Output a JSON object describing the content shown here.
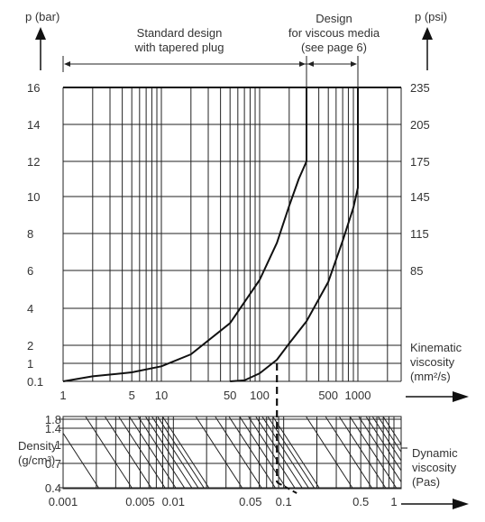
{
  "chart_data": {
    "type": "line",
    "upper_chart": {
      "left_axis": {
        "label": "p (bar)",
        "ticks": [
          "16",
          "14",
          "12",
          "10",
          "8",
          "6",
          "4",
          "2",
          "1",
          "0.1"
        ],
        "values": [
          16,
          14,
          12,
          10,
          8,
          6,
          4,
          2,
          1,
          0.1
        ]
      },
      "right_axis": {
        "label": "p (psi)",
        "ticks": [
          "235",
          "205",
          "175",
          "145",
          "115",
          "85"
        ],
        "values": [
          235,
          205,
          175,
          145,
          115,
          85
        ]
      },
      "x_axis": {
        "label_lines": [
          "Kinematic",
          "viscosity",
          "(mm²/s)"
        ],
        "scale": "log",
        "range": [
          1,
          3000
        ],
        "ticks": [
          "1",
          "5",
          "10",
          "50",
          "100",
          "500",
          "1000"
        ],
        "values": [
          1,
          5,
          10,
          50,
          100,
          500,
          1000
        ]
      },
      "regions": [
        {
          "label_lines": [
            "Standard design",
            "with tapered plug"
          ],
          "x_range": [
            1,
            300
          ]
        },
        {
          "label_lines": [
            "Design",
            "for viscous media",
            "(see page 6)"
          ],
          "x_range": [
            300,
            1000
          ]
        }
      ],
      "series": [
        {
          "points": [
            [
              1,
              0.1
            ],
            [
              2,
              0.35
            ],
            [
              5,
              0.55
            ],
            [
              10,
              0.85
            ],
            [
              20,
              1.5
            ],
            [
              50,
              3.2
            ],
            [
              100,
              5.5
            ],
            [
              150,
              7.5
            ],
            [
              200,
              9.5
            ],
            [
              250,
              11
            ],
            [
              300,
              12
            ],
            [
              300,
              16
            ]
          ]
        },
        {
          "points": [
            [
              50,
              0.1
            ],
            [
              70,
              0.15
            ],
            [
              100,
              0.5
            ],
            [
              150,
              1.2
            ],
            [
              200,
              2.1
            ],
            [
              300,
              3.3
            ],
            [
              500,
              5.4
            ],
            [
              700,
              7.6
            ],
            [
              900,
              9.4
            ],
            [
              1000,
              10.5
            ],
            [
              1000,
              16
            ]
          ]
        }
      ],
      "marker_x": 150,
      "ylim": [
        0.1,
        16
      ]
    },
    "lower_chart": {
      "left_axis": {
        "label_lines": [
          "Density",
          "(g/cm³)"
        ],
        "ticks": [
          "1.8",
          "1.4",
          "1",
          "0.7",
          "0.4"
        ],
        "values": [
          1.8,
          1.4,
          1,
          0.7,
          0.4
        ]
      },
      "x_axis": {
        "label_lines": [
          "Dynamic",
          "viscosity",
          "(Pas)"
        ],
        "scale": "log",
        "range": [
          0.001,
          3
        ],
        "ticks": [
          "0.001",
          "0.005",
          "0.01",
          "0.05",
          "0.1",
          "0.5",
          "1"
        ],
        "values": [
          0.001,
          0.005,
          0.01,
          0.05,
          0.1,
          0.5,
          1
        ]
      },
      "marker_x": 0.05
    }
  }
}
